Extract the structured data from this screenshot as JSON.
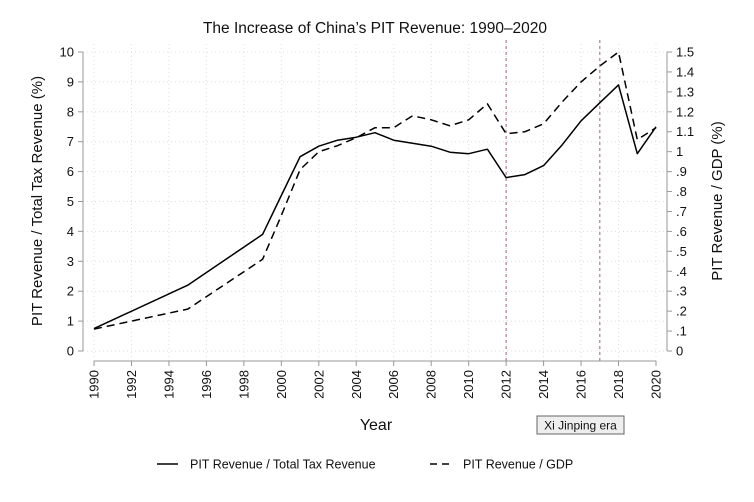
{
  "chart_data": {
    "type": "line",
    "title": "The Increase of China’s PIT Revenue: 1990–2020",
    "xlabel": "Year",
    "ylabel": "PIT Revenue / Total Tax Revenue (%)",
    "y2label": "PIT Revenue / GDP (%)",
    "xlim": [
      1990,
      2020
    ],
    "ylim": [
      0,
      10
    ],
    "y2lim": [
      0,
      1.5
    ],
    "x_ticks": [
      "1990",
      "1992",
      "1994",
      "1996",
      "1998",
      "2000",
      "2002",
      "2004",
      "2006",
      "2008",
      "2010",
      "2012",
      "2014",
      "2016",
      "2018",
      "2020"
    ],
    "y_ticks": [
      "0",
      "1",
      "2",
      "3",
      "4",
      "5",
      "6",
      "7",
      "8",
      "9",
      "10"
    ],
    "y2_ticks": [
      "0",
      ".1",
      ".2",
      ".3",
      ".4",
      ".5",
      ".6",
      ".7",
      ".8",
      ".9",
      "1",
      "1.1",
      "1.2",
      "1.3",
      "1.4",
      "1.5"
    ],
    "grid": true,
    "legend_placement": "bottom",
    "series": [
      {
        "name": "PIT Revenue / Total Tax Revenue",
        "axis": "left",
        "style": "solid",
        "x": [
          1990,
          1995,
          1999,
          2000,
          2001,
          2002,
          2003,
          2004,
          2005,
          2006,
          2007,
          2008,
          2009,
          2010,
          2011,
          2012,
          2013,
          2014,
          2015,
          2016,
          2017,
          2018,
          2019,
          2020
        ],
        "values": [
          0.75,
          2.2,
          3.9,
          5.2,
          6.5,
          6.85,
          7.05,
          7.15,
          7.3,
          7.05,
          6.95,
          6.85,
          6.65,
          6.6,
          6.75,
          5.8,
          5.9,
          6.2,
          6.9,
          7.7,
          8.3,
          8.9,
          6.6,
          7.5
        ]
      },
      {
        "name": "PIT Revenue / GDP",
        "axis": "right",
        "style": "dashed",
        "x": [
          1990,
          1995,
          1999,
          2000,
          2001,
          2002,
          2003,
          2004,
          2005,
          2006,
          2007,
          2008,
          2009,
          2010,
          2011,
          2012,
          2013,
          2014,
          2015,
          2016,
          2017,
          2018,
          2019,
          2020
        ],
        "values": [
          0.11,
          0.21,
          0.46,
          0.68,
          0.91,
          1.0,
          1.03,
          1.07,
          1.12,
          1.12,
          1.18,
          1.16,
          1.13,
          1.16,
          1.24,
          1.09,
          1.1,
          1.14,
          1.25,
          1.35,
          1.43,
          1.5,
          1.06,
          1.12
        ]
      }
    ],
    "reference_lines": {
      "x": [
        2012,
        2017
      ],
      "color": "#b07aa1"
    },
    "annotation": {
      "text": "Xi Jinping era"
    },
    "colors": {
      "lines": "#000000",
      "axis": "#999999",
      "grid": "#dddddd",
      "annotation_bg": "#eeeeee"
    }
  }
}
